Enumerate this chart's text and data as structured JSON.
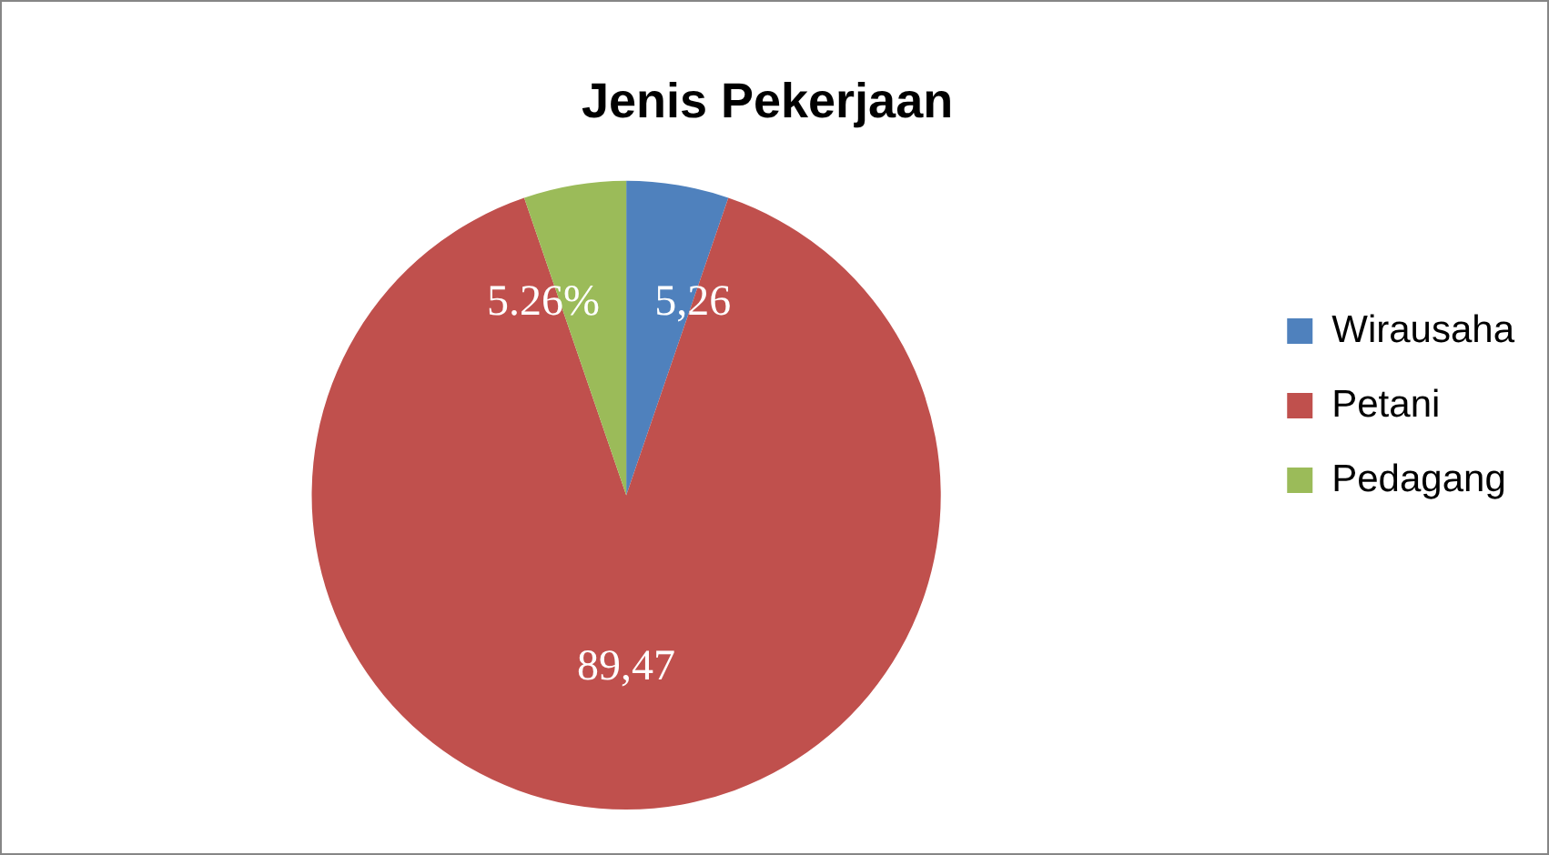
{
  "chart_data": {
    "type": "pie",
    "title": "Jenis Pekerjaan",
    "categories": [
      "Wirausaha",
      "Petani",
      "Pedagang"
    ],
    "values": [
      5.26,
      89.47,
      5.26
    ],
    "colors": [
      "#4f81bd",
      "#c0504d",
      "#9bbb59"
    ],
    "value_labels": [
      "5,26",
      "89,47",
      "5.26%"
    ],
    "legend": "right"
  }
}
